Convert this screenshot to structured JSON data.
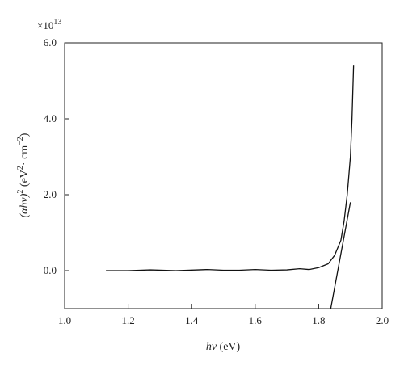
{
  "chart_data": {
    "type": "line",
    "title": "",
    "multiplier": {
      "base": "×10",
      "exponent": "13"
    },
    "xlabel": {
      "italic": "hν",
      "rest": " (eV)"
    },
    "ylabel": {
      "italic": "(αhν)",
      "sup1": "2",
      "mid": " (eV",
      "sup2": "2",
      "mid2": "· cm",
      "sup3": "−2",
      "end": ")"
    },
    "xlim": [
      1.0,
      2.0
    ],
    "ylim": [
      -1.0,
      6.0
    ],
    "xticks": [
      1.0,
      1.2,
      1.4,
      1.6,
      1.8,
      2.0
    ],
    "xtick_labels": [
      "1.0",
      "1.2",
      "1.4",
      "1.6",
      "1.8",
      "2.0"
    ],
    "yticks": [
      0.0,
      2.0,
      4.0,
      6.0
    ],
    "ytick_labels": [
      "0.0",
      "2.0",
      "4.0",
      "6.0"
    ],
    "grid": false,
    "series": [
      {
        "x": [
          1.13,
          1.2,
          1.27,
          1.35,
          1.42,
          1.45,
          1.5,
          1.55,
          1.6,
          1.65,
          1.7,
          1.74,
          1.77,
          1.8,
          1.83,
          1.85,
          1.87,
          1.88,
          1.89,
          1.9,
          1.905,
          1.91
        ],
        "y": [
          0.0,
          0.0,
          0.02,
          0.0,
          0.02,
          0.03,
          0.01,
          0.01,
          0.03,
          0.01,
          0.02,
          0.05,
          0.03,
          0.08,
          0.18,
          0.4,
          0.8,
          1.3,
          2.0,
          3.0,
          4.0,
          5.4
        ]
      },
      {
        "x": [
          1.838,
          1.9
        ],
        "y": [
          -1.0,
          1.8
        ]
      }
    ]
  }
}
